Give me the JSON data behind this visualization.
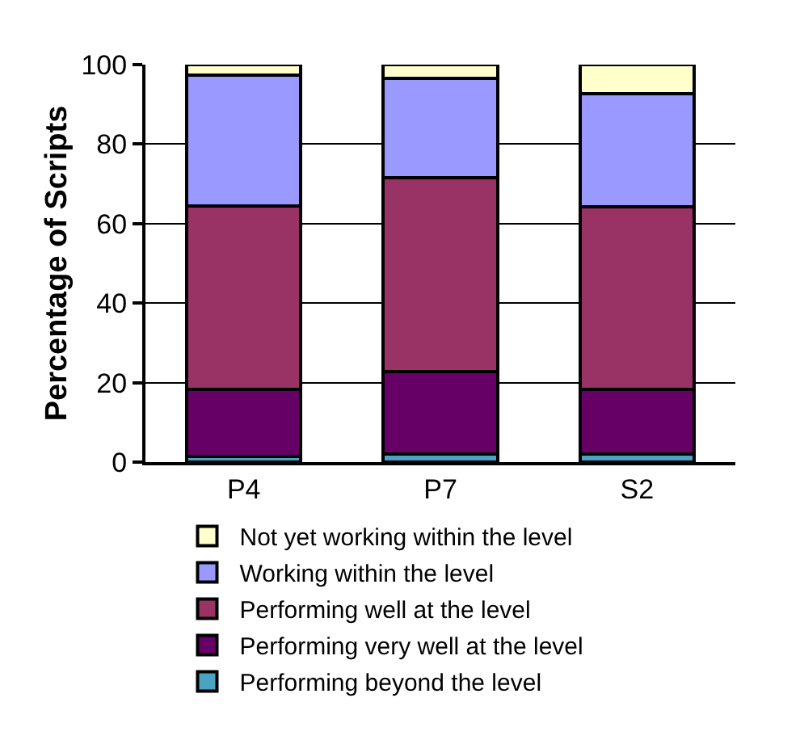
{
  "chart_data": {
    "type": "bar",
    "stacked": true,
    "ylabel": "Percentage of Scripts",
    "categories": [
      "P4",
      "P7",
      "S2"
    ],
    "series": [
      {
        "name": "Performing beyond the level",
        "color": "#4ba3c3",
        "values": [
          1.5,
          2,
          2
        ]
      },
      {
        "name": "Performing very well at the level",
        "color": "#660066",
        "values": [
          16.8,
          20.7,
          16.3
        ]
      },
      {
        "name": "Performing well at the level",
        "color": "#993366",
        "values": [
          46.2,
          48.9,
          46
        ]
      },
      {
        "name": "Working within the level",
        "color": "#9999ff",
        "values": [
          32.8,
          24.9,
          28.4
        ]
      },
      {
        "name": "Not yet working within the level",
        "color": "#ffffcc",
        "values": [
          2.7,
          3.5,
          7.3
        ]
      }
    ],
    "ylim": [
      0,
      100
    ],
    "yticks": [
      0,
      20,
      40,
      60,
      80,
      100
    ],
    "grid": "y",
    "legend": "bottom"
  }
}
